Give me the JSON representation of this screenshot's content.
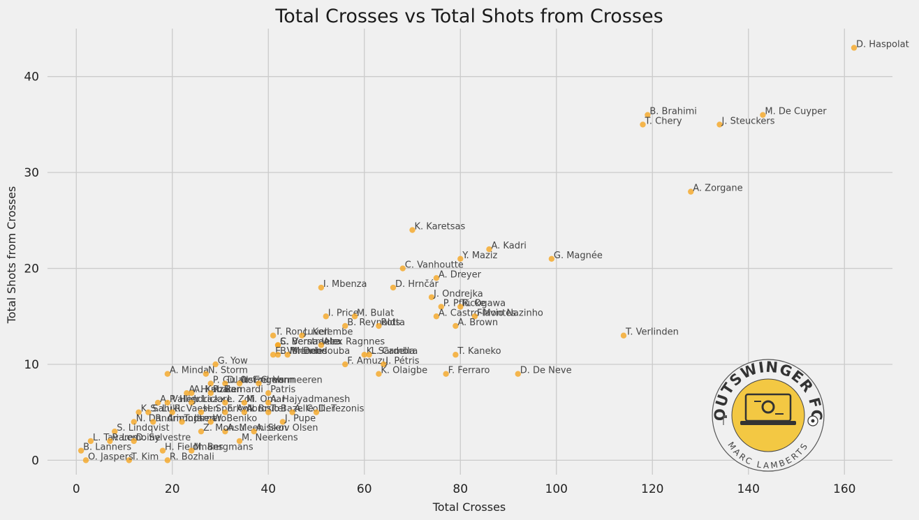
{
  "chart_data": {
    "type": "scatter",
    "title": "Total Crosses vs Total Shots from Crosses",
    "xlabel": "Total Crosses",
    "ylabel": "Total Shots from Crosses",
    "xlim": [
      -6,
      170
    ],
    "ylim": [
      -1.5,
      45
    ],
    "xticks": [
      0,
      20,
      40,
      60,
      80,
      100,
      120,
      140,
      160
    ],
    "yticks": [
      0,
      10,
      20,
      30,
      40
    ],
    "grid": true,
    "marker_color": "#f5a623",
    "points": [
      {
        "name": "D. Haspolat",
        "x": 162,
        "y": 43
      },
      {
        "name": "B. Brahimi",
        "x": 119,
        "y": 36
      },
      {
        "name": "M. De Cuyper",
        "x": 143,
        "y": 36
      },
      {
        "name": "T. Chery",
        "x": 118,
        "y": 35
      },
      {
        "name": "J. Steuckers",
        "x": 134,
        "y": 35
      },
      {
        "name": "A. Zorgane",
        "x": 128,
        "y": 28
      },
      {
        "name": "K. Karetsas",
        "x": 70,
        "y": 24
      },
      {
        "name": "A. Kadri",
        "x": 86,
        "y": 22
      },
      {
        "name": "Y. Maziz",
        "x": 80,
        "y": 21
      },
      {
        "name": "G. Magnée",
        "x": 99,
        "y": 21
      },
      {
        "name": "C. Vanhoutte",
        "x": 68,
        "y": 20
      },
      {
        "name": "A. Dreyer",
        "x": 75,
        "y": 19
      },
      {
        "name": "I. Mbenza",
        "x": 51,
        "y": 18
      },
      {
        "name": "D. Hrnčár",
        "x": 66,
        "y": 18
      },
      {
        "name": "J. Ondrejka",
        "x": 74,
        "y": 17
      },
      {
        "name": "P. Pflücke",
        "x": 76,
        "y": 16
      },
      {
        "name": "R. Ogawa",
        "x": 80,
        "y": 16
      },
      {
        "name": "I. Price",
        "x": 52,
        "y": 15
      },
      {
        "name": "M. Bulat",
        "x": 58,
        "y": 15
      },
      {
        "name": "A. Castro-Montes",
        "x": 75,
        "y": 15
      },
      {
        "name": "Flavio Nazinho",
        "x": 83,
        "y": 15
      },
      {
        "name": "B. Reynolds",
        "x": 56,
        "y": 14
      },
      {
        "name": "Rotta",
        "x": 63,
        "y": 14
      },
      {
        "name": "A. Brown",
        "x": 79,
        "y": 14
      },
      {
        "name": "T. Roncuvell",
        "x": 41,
        "y": 13
      },
      {
        "name": "J. Kerembe",
        "x": 47,
        "y": 13
      },
      {
        "name": "T. Verlinden",
        "x": 114,
        "y": 13
      },
      {
        "name": "C. Verstraete",
        "x": 42,
        "y": 12
      },
      {
        "name": "S. Bernadeira",
        "x": 42,
        "y": 12
      },
      {
        "name": "Alex Ragnnes",
        "x": 51,
        "y": 12
      },
      {
        "name": "E. Vorlenne",
        "x": 41,
        "y": 11
      },
      {
        "name": "B. Mendes",
        "x": 42,
        "y": 11
      },
      {
        "name": "M. Debdouba",
        "x": 44,
        "y": 11
      },
      {
        "name": "K. Sardella",
        "x": 60,
        "y": 11
      },
      {
        "name": "L. Cambra",
        "x": 61,
        "y": 11
      },
      {
        "name": "T. Kaneko",
        "x": 79,
        "y": 11
      },
      {
        "name": "G. Yow",
        "x": 29,
        "y": 10
      },
      {
        "name": "F. Amuzu",
        "x": 56,
        "y": 10
      },
      {
        "name": "J. Pétris",
        "x": 64,
        "y": 10
      },
      {
        "name": "A. Minda",
        "x": 19,
        "y": 9
      },
      {
        "name": "N. Storm",
        "x": 27,
        "y": 9
      },
      {
        "name": "K. Olaigbe",
        "x": 63,
        "y": 9
      },
      {
        "name": "F. Ferraro",
        "x": 77,
        "y": 9
      },
      {
        "name": "D. De Neve",
        "x": 92,
        "y": 9
      },
      {
        "name": "P. Gulacsi",
        "x": 28,
        "y": 8
      },
      {
        "name": "D. Oetzelmann",
        "x": 31,
        "y": 8
      },
      {
        "name": "N. Engels",
        "x": 34,
        "y": 8
      },
      {
        "name": "C. Vermeeren",
        "x": 38,
        "y": 8
      },
      {
        "name": "A. Hunziker",
        "x": 23,
        "y": 7
      },
      {
        "name": "A. Kabalan",
        "x": 24,
        "y": 7
      },
      {
        "name": "R. Bernardi",
        "x": 28,
        "y": 7
      },
      {
        "name": "Patris",
        "x": 40,
        "y": 7
      },
      {
        "name": "A. Vallier",
        "x": 17,
        "y": 6
      },
      {
        "name": "P. Hendrickx",
        "x": 19,
        "y": 6
      },
      {
        "name": "J. Lazare",
        "x": 24,
        "y": 6
      },
      {
        "name": "L. Zoli",
        "x": 31,
        "y": 6
      },
      {
        "name": "M. Omar",
        "x": 35,
        "y": 6
      },
      {
        "name": "A. Hajyadmanesh",
        "x": 40,
        "y": 6
      },
      {
        "name": "K. Sahi",
        "x": 13,
        "y": 5
      },
      {
        "name": "S. Lukic",
        "x": 15,
        "y": 5
      },
      {
        "name": "R. Vaesen",
        "x": 20,
        "y": 5
      },
      {
        "name": "H. Sporkvik",
        "x": 26,
        "y": 5
      },
      {
        "name": "F. Ambrosio",
        "x": 31,
        "y": 5
      },
      {
        "name": "A. Brutel",
        "x": 35,
        "y": 5
      },
      {
        "name": "T. Bazelle",
        "x": 40,
        "y": 5
      },
      {
        "name": "A. Collier",
        "x": 45,
        "y": 5
      },
      {
        "name": "D. Tezonis",
        "x": 50,
        "y": 5
      },
      {
        "name": "N. Dandrimont",
        "x": 12,
        "y": 4
      },
      {
        "name": "R. Amundsen",
        "x": 16,
        "y": 4
      },
      {
        "name": "T. Jarnero",
        "x": 22,
        "y": 4
      },
      {
        "name": "W. Beniko",
        "x": 28,
        "y": 4
      },
      {
        "name": "J. Pupe",
        "x": 43,
        "y": 4
      },
      {
        "name": "A. Meenissen",
        "x": 31,
        "y": 3
      },
      {
        "name": "Z. Monsu",
        "x": 26,
        "y": 3
      },
      {
        "name": "S. Lindqvist",
        "x": 8,
        "y": 3
      },
      {
        "name": "A. Skov Olsen",
        "x": 37,
        "y": 3
      },
      {
        "name": "L. Tavares",
        "x": 3,
        "y": 2
      },
      {
        "name": "M. Neerkens",
        "x": 34,
        "y": 2
      },
      {
        "name": "P. Lemoine",
        "x": 7,
        "y": 2
      },
      {
        "name": "D. Sylvestre",
        "x": 12,
        "y": 2
      },
      {
        "name": "H. Fieldmans",
        "x": 18,
        "y": 1
      },
      {
        "name": "M. Bergmans",
        "x": 24,
        "y": 1
      },
      {
        "name": "B. Lanners",
        "x": 1,
        "y": 1
      },
      {
        "name": "R. Bozhali",
        "x": 19,
        "y": 0
      },
      {
        "name": "T. Kim",
        "x": 11,
        "y": 0
      },
      {
        "name": "O. Jaspers",
        "x": 2,
        "y": 0
      }
    ]
  },
  "logo": {
    "name": "OUTSWINGER FC",
    "tagline": "MARC LAMBERTS",
    "color": "#f3c843"
  }
}
